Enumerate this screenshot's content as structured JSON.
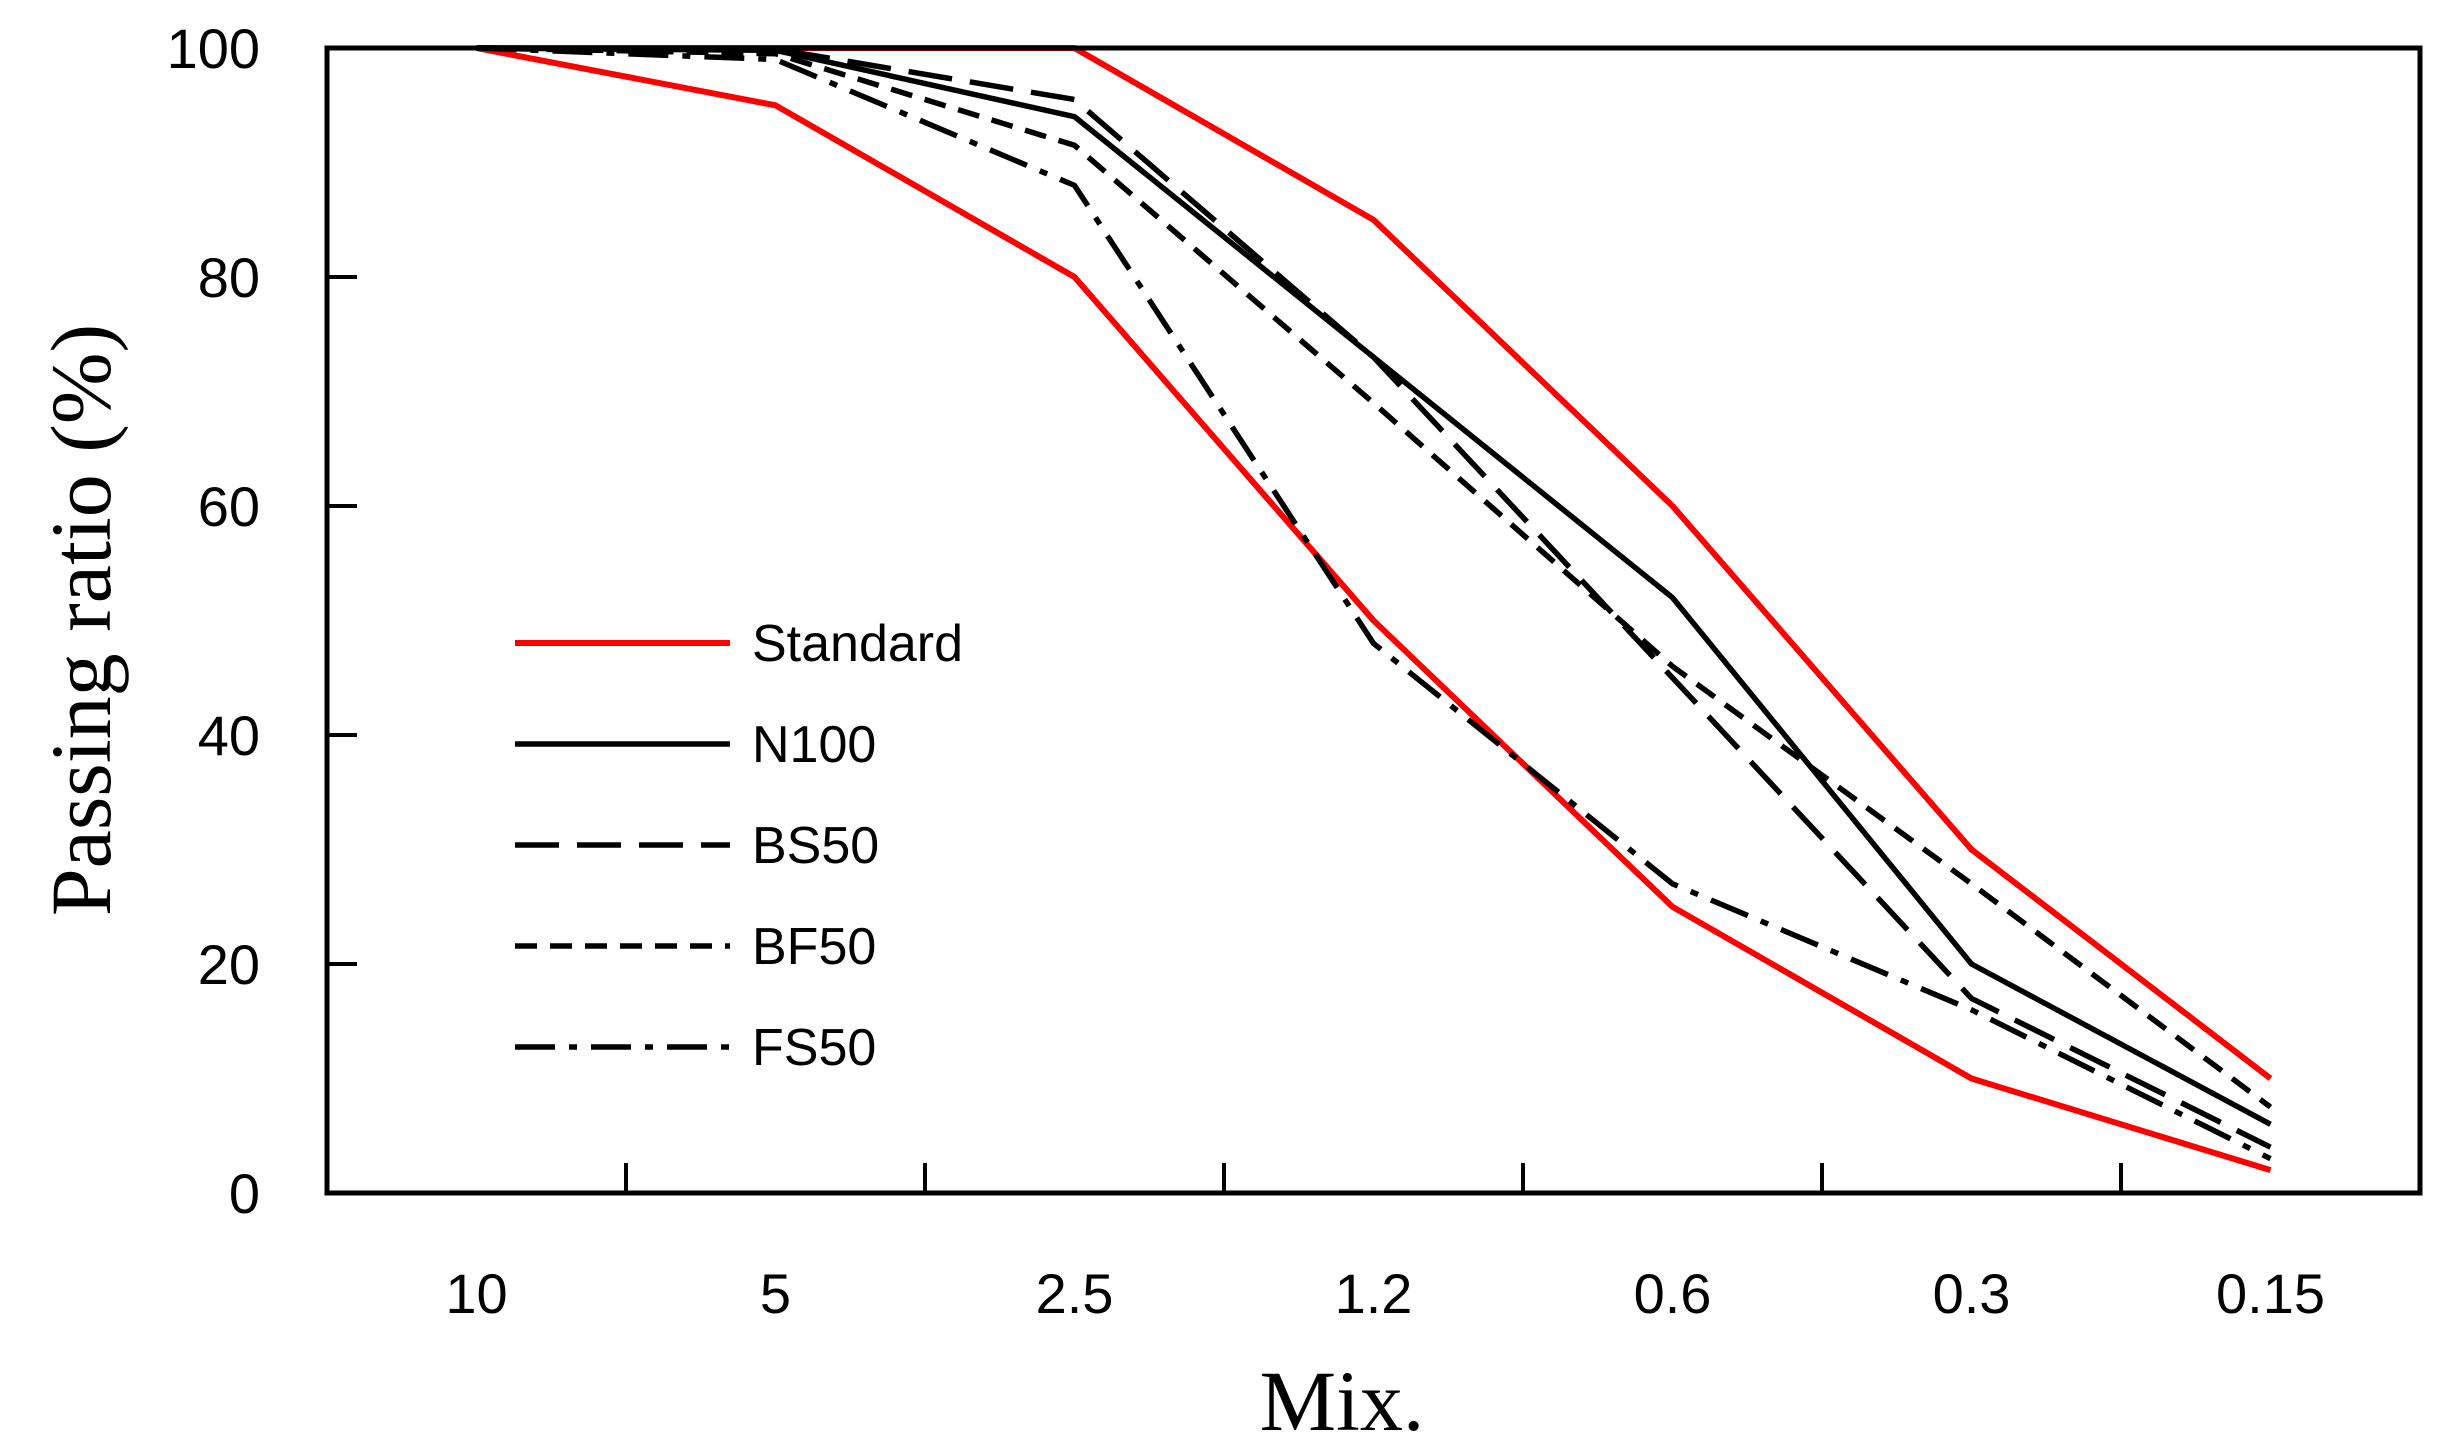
{
  "chart_data": {
    "type": "line",
    "title": "",
    "xlabel": "Mix.",
    "ylabel": "Passing ratio (%)",
    "categories": [
      "10",
      "5",
      "2.5",
      "1.2",
      "0.6",
      "0.3",
      "0.15"
    ],
    "ylim": [
      0,
      100
    ],
    "yticks": [
      "0",
      "20",
      "40",
      "60",
      "80",
      "100"
    ],
    "grid": false,
    "legend_position": "center-left",
    "legend": [
      {
        "label": "Standard",
        "color": "#ff0000",
        "style": "solid"
      },
      {
        "label": "N100",
        "color": "#000000",
        "style": "solid"
      },
      {
        "label": "BS50",
        "color": "#000000",
        "style": "long-dash"
      },
      {
        "label": "BF50",
        "color": "#000000",
        "style": "short-dash"
      },
      {
        "label": "FS50",
        "color": "#000000",
        "style": "dash-dot"
      }
    ],
    "series": [
      {
        "name": "Standard",
        "bound": "upper",
        "color": "#ff0000",
        "style": "solid",
        "values": [
          100,
          100,
          100,
          85,
          60,
          30,
          10
        ]
      },
      {
        "name": "Standard",
        "bound": "lower",
        "color": "#ff0000",
        "style": "solid",
        "values": [
          100,
          95,
          80,
          50,
          25,
          10,
          2
        ]
      },
      {
        "name": "N100",
        "color": "#000000",
        "style": "solid",
        "values": [
          100,
          99.8,
          94,
          73,
          52,
          20,
          6
        ]
      },
      {
        "name": "BS50",
        "color": "#000000",
        "style": "long-dash",
        "values": [
          100,
          99.9,
          95.5,
          73,
          45,
          17,
          4
        ]
      },
      {
        "name": "BF50",
        "color": "#000000",
        "style": "short-dash",
        "values": [
          100,
          99.5,
          91.5,
          69,
          46,
          27,
          7.5
        ]
      },
      {
        "name": "FS50",
        "color": "#000000",
        "style": "dash-dot",
        "values": [
          100,
          99,
          88,
          48,
          27,
          16,
          3
        ]
      }
    ]
  }
}
